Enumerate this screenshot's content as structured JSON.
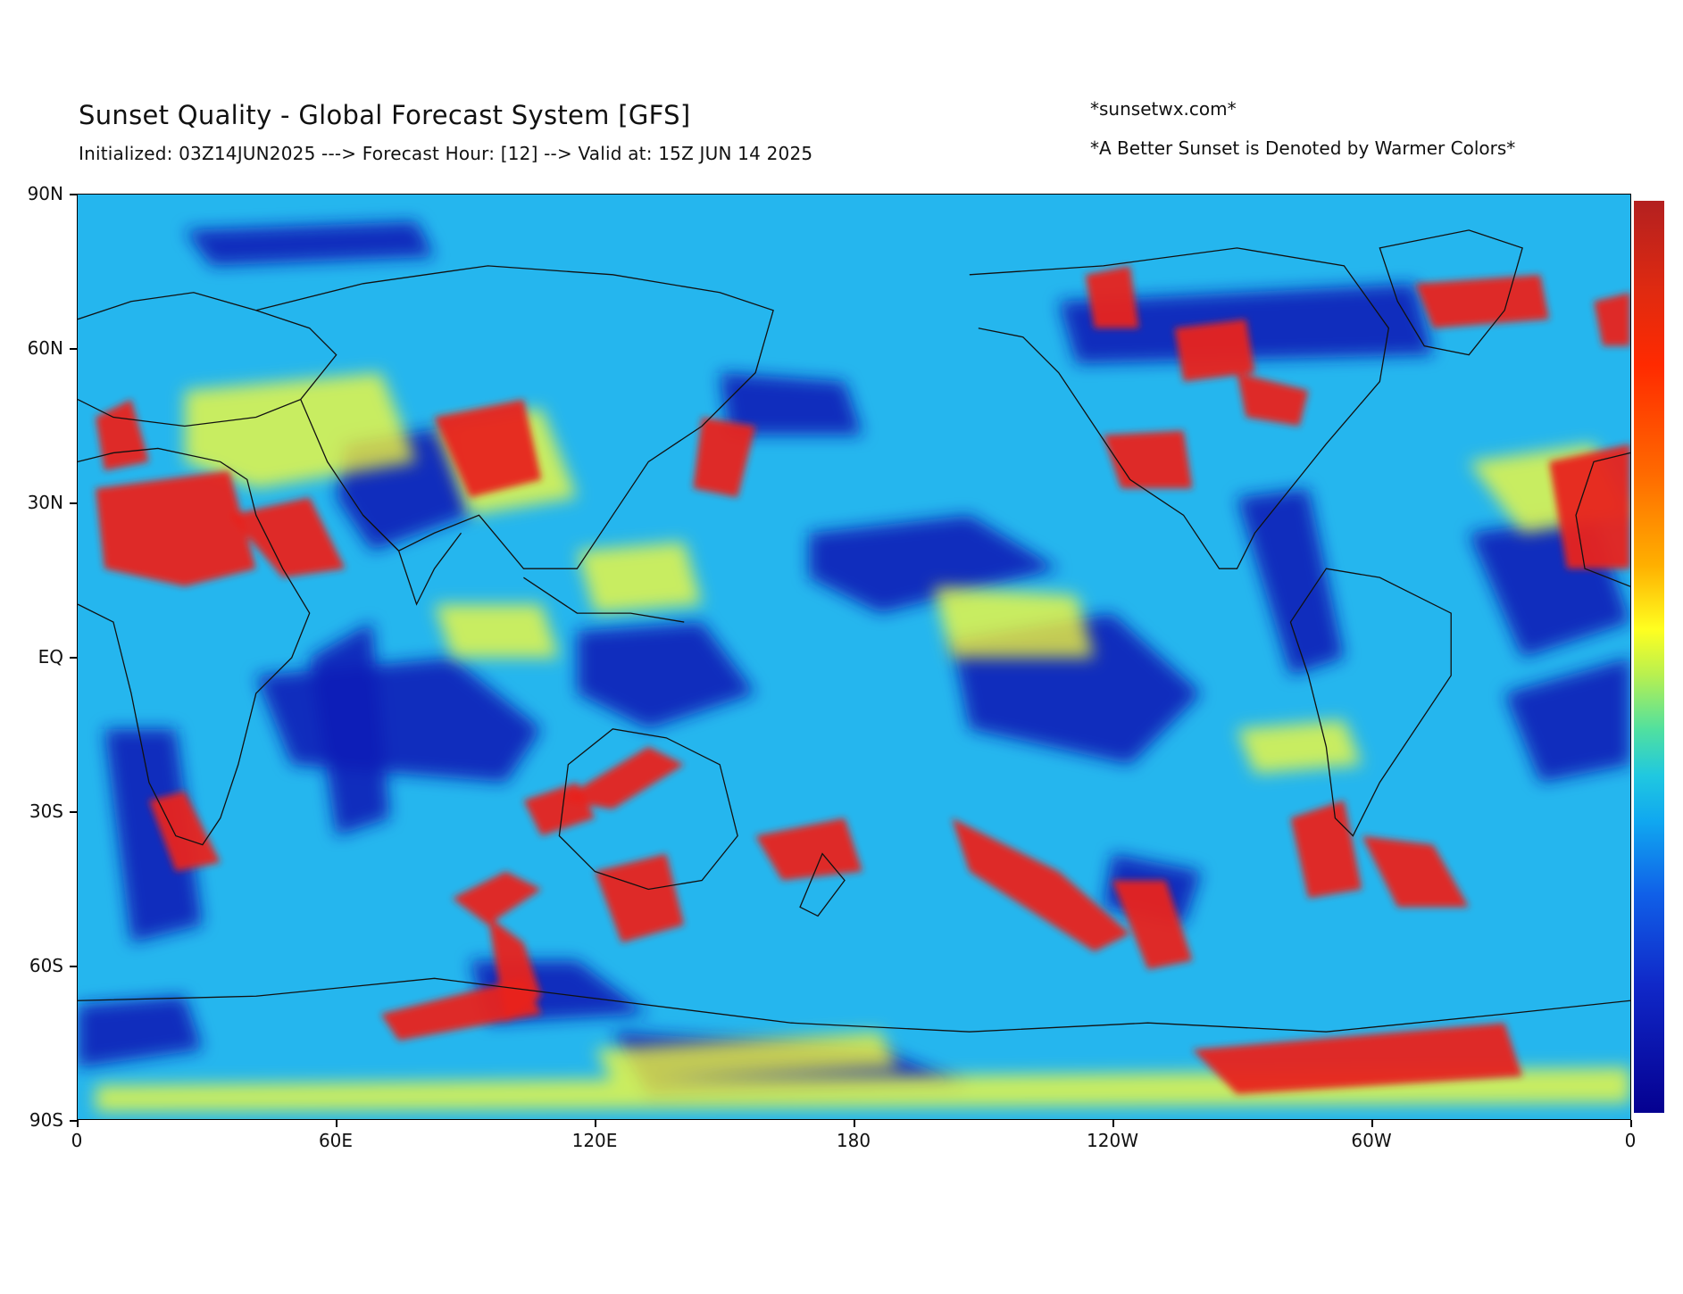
{
  "header": {
    "title": "Sunset Quality - Global Forecast System [GFS]",
    "subtitle": "Initialized: 03Z14JUN2025 ---> Forecast Hour: [12] --> Valid at: 15Z JUN 14 2025",
    "credit": "*sunsetwx.com*",
    "note": "*A Better Sunset is Denoted by Warmer Colors*"
  },
  "axes": {
    "y_ticks": [
      "90N",
      "60N",
      "30N",
      "EQ",
      "30S",
      "60S",
      "90S"
    ],
    "x_ticks": [
      "0",
      "60E",
      "120E",
      "180",
      "120W",
      "60W",
      "0"
    ]
  },
  "colors": {
    "background_field": "#22b8f0",
    "low_quality": "#0a1fb8",
    "mid_quality": "#ffff30",
    "high_quality": "#e8241a",
    "coastline": "#111111"
  },
  "colorbar": {
    "orientation": "vertical",
    "labels": []
  }
}
